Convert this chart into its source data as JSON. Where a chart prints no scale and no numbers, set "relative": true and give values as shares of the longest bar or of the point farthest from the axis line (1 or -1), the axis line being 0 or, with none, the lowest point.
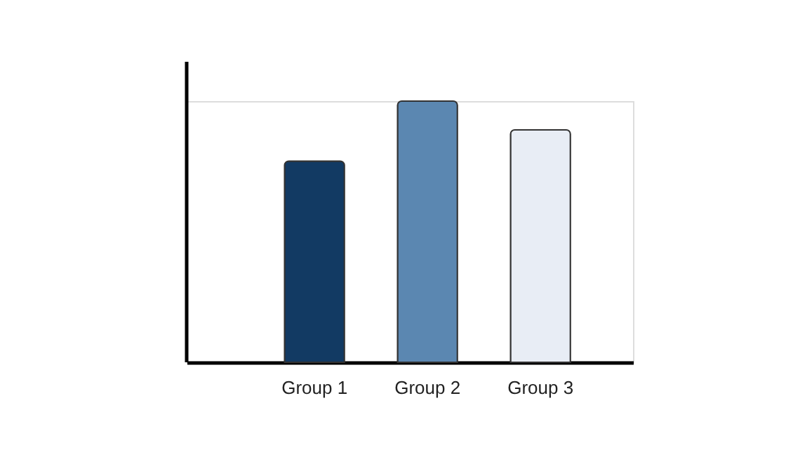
{
  "chart_data": {
    "type": "bar",
    "relative": true,
    "categories": [
      "Group 1",
      "Group 2",
      "Group 3"
    ],
    "values": [
      0.77,
      1,
      0.89
    ],
    "colors": [
      "#123a63",
      "#5b87b1",
      "#e8edf5"
    ]
  }
}
